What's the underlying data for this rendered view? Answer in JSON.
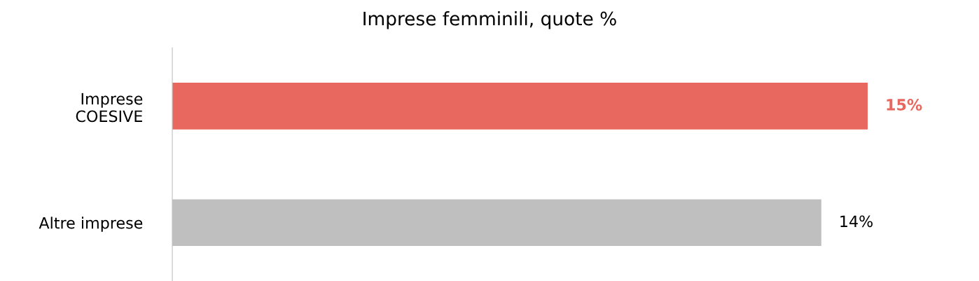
{
  "chart_data": {
    "type": "bar",
    "orientation": "horizontal",
    "title": "Imprese femminili, quote %",
    "categories": [
      "Imprese\nCOESIVE",
      "Altre imprese"
    ],
    "values": [
      15,
      14
    ],
    "colors": [
      "#e8685f",
      "#bfbfbf"
    ],
    "value_labels": [
      "15%",
      "14%"
    ],
    "grid": false,
    "legend": false
  }
}
